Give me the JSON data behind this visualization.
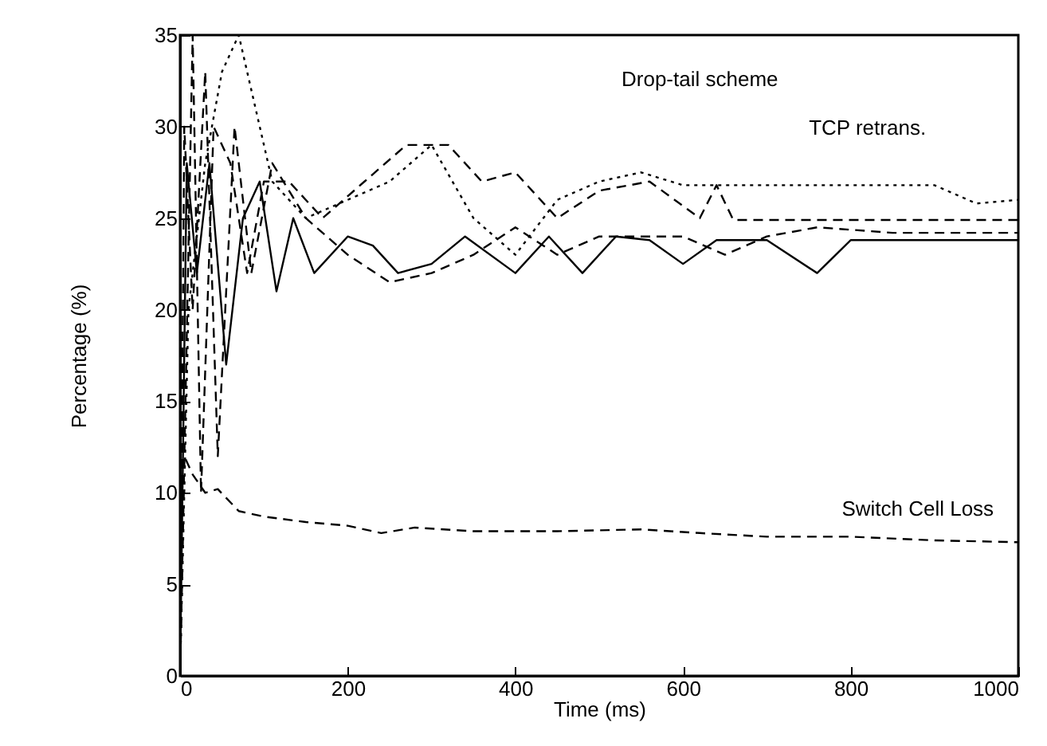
{
  "chart_data": {
    "type": "line",
    "xlabel": "Time (ms)",
    "ylabel": "Percentage (%)",
    "annotations": [
      "Drop-tail scheme",
      "TCP retrans.",
      "Switch Cell Loss"
    ],
    "xlim": [
      0,
      1000
    ],
    "xticks": [
      0,
      200,
      400,
      600,
      800,
      1000
    ],
    "ylim": [
      0,
      35
    ],
    "yticks": [
      0,
      5,
      10,
      15,
      20,
      25,
      30,
      35
    ],
    "grid": false,
    "marker": "none",
    "series": [
      {
        "color": "#000000",
        "line_style": "dotted",
        "x": [
          0,
          10,
          30,
          50,
          70,
          90,
          110,
          150,
          200,
          250,
          300,
          350,
          400,
          450,
          500,
          550,
          600,
          700,
          800,
          900,
          950,
          1000
        ],
        "values": [
          0,
          20,
          28,
          33,
          35,
          31,
          27,
          25,
          26,
          27,
          29,
          25,
          23,
          26,
          27,
          27.5,
          26.8,
          26.8,
          26.8,
          26.8,
          25.8,
          26
        ]
      },
      {
        "color": "#000000",
        "line_style": "dashed",
        "x": [
          0,
          15,
          25,
          40,
          60,
          80,
          100,
          130,
          170,
          220,
          270,
          320,
          360,
          400,
          450,
          500,
          560,
          620,
          640,
          660,
          700,
          800,
          900,
          1000
        ],
        "values": [
          0,
          35,
          10,
          30,
          28,
          22,
          27,
          27,
          25,
          27,
          29,
          29,
          27,
          27.5,
          25,
          26.5,
          27,
          25,
          26.8,
          24.9,
          24.9,
          24.9,
          24.9,
          24.9
        ]
      },
      {
        "color": "#000000",
        "line_style": "solid",
        "x": [
          0,
          8,
          20,
          35,
          55,
          75,
          95,
          115,
          135,
          160,
          200,
          230,
          260,
          300,
          340,
          400,
          440,
          480,
          520,
          560,
          600,
          640,
          700,
          760,
          800,
          1000
        ],
        "values": [
          0,
          28,
          22,
          28,
          17,
          25,
          27,
          21,
          25,
          22,
          24,
          23.5,
          22,
          22.5,
          24,
          22,
          24,
          22,
          24,
          23.8,
          22.5,
          23.8,
          23.8,
          22,
          23.8,
          23.8
        ]
      },
      {
        "color": "#000000",
        "line_style": "dashed",
        "x": [
          0,
          5,
          15,
          30,
          45,
          65,
          85,
          110,
          150,
          200,
          250,
          300,
          350,
          400,
          450,
          500,
          600,
          650,
          700,
          760,
          850,
          1000
        ],
        "values": [
          0,
          30,
          20,
          33,
          12,
          30,
          22,
          28,
          25,
          23,
          21.5,
          22,
          23,
          24.5,
          23,
          24,
          24,
          23,
          24,
          24.5,
          24.2,
          24.2
        ]
      },
      {
        "color": "#000000",
        "line_style": "dashed",
        "x": [
          0,
          5,
          15,
          30,
          45,
          70,
          100,
          150,
          200,
          240,
          280,
          350,
          450,
          550,
          620,
          700,
          800,
          900,
          1000
        ],
        "values": [
          0,
          12,
          11,
          10,
          10.2,
          9,
          8.7,
          8.4,
          8.2,
          7.8,
          8.1,
          7.9,
          7.9,
          8,
          7.8,
          7.6,
          7.6,
          7.4,
          7.3
        ]
      }
    ]
  }
}
